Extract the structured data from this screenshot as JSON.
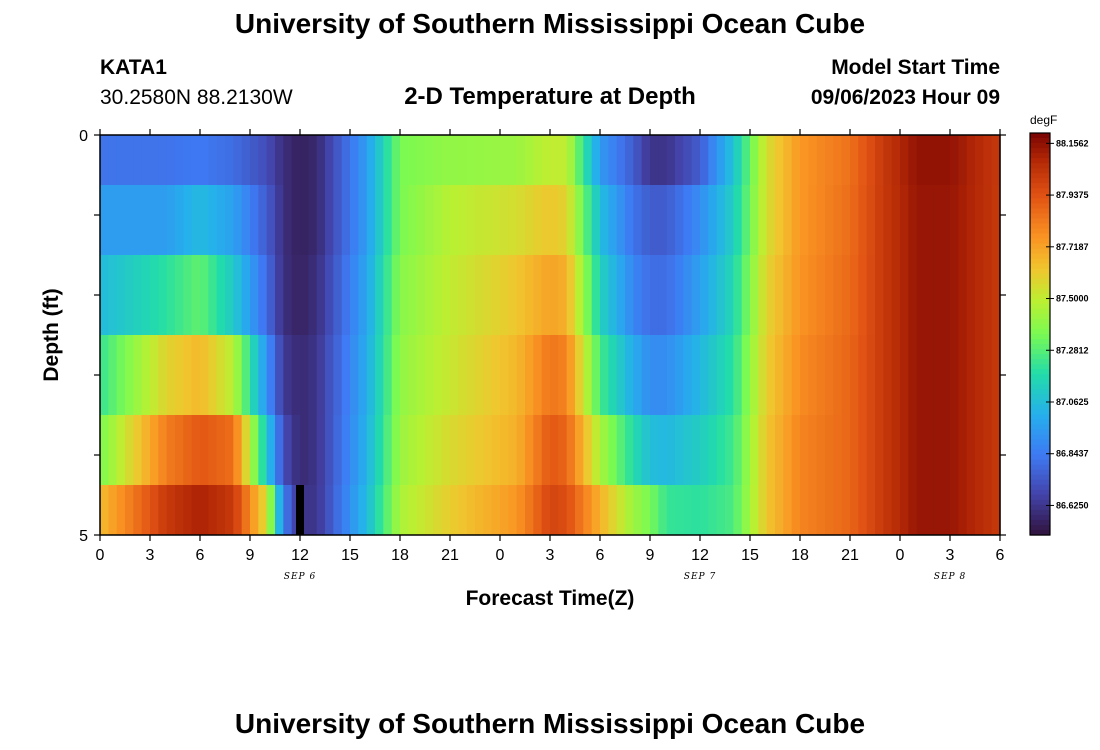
{
  "header": {
    "title": "University of Southern Mississippi Ocean Cube",
    "station": "KATA1",
    "coords": "30.2580N  88.2130W",
    "subtitle": "2-D Temperature at Depth",
    "model_label": "Model Start Time",
    "model_time": "09/06/2023 Hour 09"
  },
  "footer": {
    "title": "University of Southern Mississippi Ocean Cube"
  },
  "chart_data": {
    "type": "heatmap",
    "xlabel": "Forecast Time(Z)",
    "ylabel": "Depth (ft)",
    "x_tick_labels": [
      "0",
      "3",
      "6",
      "9",
      "12",
      "15",
      "18",
      "21",
      "0",
      "3",
      "6",
      "9",
      "12",
      "15",
      "18",
      "21",
      "0",
      "3",
      "6"
    ],
    "date_labels": [
      {
        "label": "SEP 6",
        "hour": 12
      },
      {
        "label": "SEP 7",
        "hour": 36
      },
      {
        "label": "SEP 8",
        "hour": 51
      }
    ],
    "x_range_hours": [
      0,
      54
    ],
    "y_range": [
      0,
      5
    ],
    "y_tick_labels": [
      "0",
      "5"
    ],
    "depth_bands": [
      0.25,
      1,
      2,
      3,
      4,
      4.75
    ],
    "colorbar": {
      "unit": "degF",
      "min": 86.5,
      "max": 88.2,
      "labels": [
        "88.1562",
        "87.9375",
        "87.7187",
        "87.5000",
        "87.2812",
        "87.0625",
        "86.8437",
        "86.6250"
      ]
    },
    "temperature_keyframes": {
      "hours": [
        0,
        4,
        6,
        8,
        10,
        11,
        12,
        13,
        16,
        18,
        21,
        25,
        27,
        28,
        30,
        32,
        33,
        34,
        36,
        38,
        40,
        42,
        45,
        47,
        49,
        51,
        54
      ],
      "rows": [
        [
          86.82,
          86.82,
          86.84,
          86.8,
          86.7,
          86.6,
          86.55,
          86.58,
          86.95,
          87.35,
          87.4,
          87.42,
          87.5,
          87.5,
          86.94,
          86.75,
          86.62,
          86.62,
          86.75,
          87.08,
          87.55,
          87.75,
          87.85,
          88.02,
          88.15,
          88.15,
          88.02
        ],
        [
          86.95,
          86.95,
          87.05,
          86.96,
          86.75,
          86.6,
          86.55,
          86.58,
          86.95,
          87.35,
          87.48,
          87.55,
          87.62,
          87.58,
          87.06,
          86.82,
          86.75,
          86.75,
          86.9,
          87.12,
          87.55,
          87.75,
          87.86,
          88.02,
          88.14,
          88.14,
          88.02
        ],
        [
          87.05,
          87.2,
          87.3,
          87.1,
          86.8,
          86.6,
          86.56,
          86.6,
          86.98,
          87.38,
          87.5,
          87.62,
          87.72,
          87.68,
          87.14,
          86.88,
          86.8,
          86.8,
          86.96,
          87.16,
          87.58,
          87.76,
          87.87,
          88.02,
          88.14,
          88.14,
          88.02
        ],
        [
          87.22,
          87.58,
          87.66,
          87.48,
          86.92,
          86.64,
          86.58,
          86.62,
          87.0,
          87.4,
          87.52,
          87.66,
          87.84,
          87.8,
          87.25,
          87.0,
          86.9,
          86.9,
          87.04,
          87.2,
          87.6,
          87.78,
          87.88,
          88.02,
          88.14,
          88.14,
          88.02
        ],
        [
          87.35,
          87.82,
          87.92,
          87.86,
          87.1,
          86.7,
          86.58,
          86.62,
          87.02,
          87.42,
          87.56,
          87.68,
          87.92,
          87.88,
          87.45,
          87.18,
          87.06,
          87.04,
          87.12,
          87.24,
          87.62,
          87.8,
          87.88,
          88.02,
          88.14,
          88.14,
          88.02
        ],
        [
          87.65,
          88.02,
          88.1,
          88.02,
          87.55,
          86.85,
          86.62,
          86.62,
          87.05,
          87.45,
          87.6,
          87.75,
          87.98,
          87.95,
          87.68,
          87.42,
          87.35,
          87.22,
          87.2,
          87.26,
          87.62,
          87.8,
          87.88,
          88.02,
          88.14,
          88.14,
          88.02
        ]
      ]
    },
    "missing_cells": [
      {
        "hour": 12,
        "depth": 4.75
      }
    ]
  }
}
